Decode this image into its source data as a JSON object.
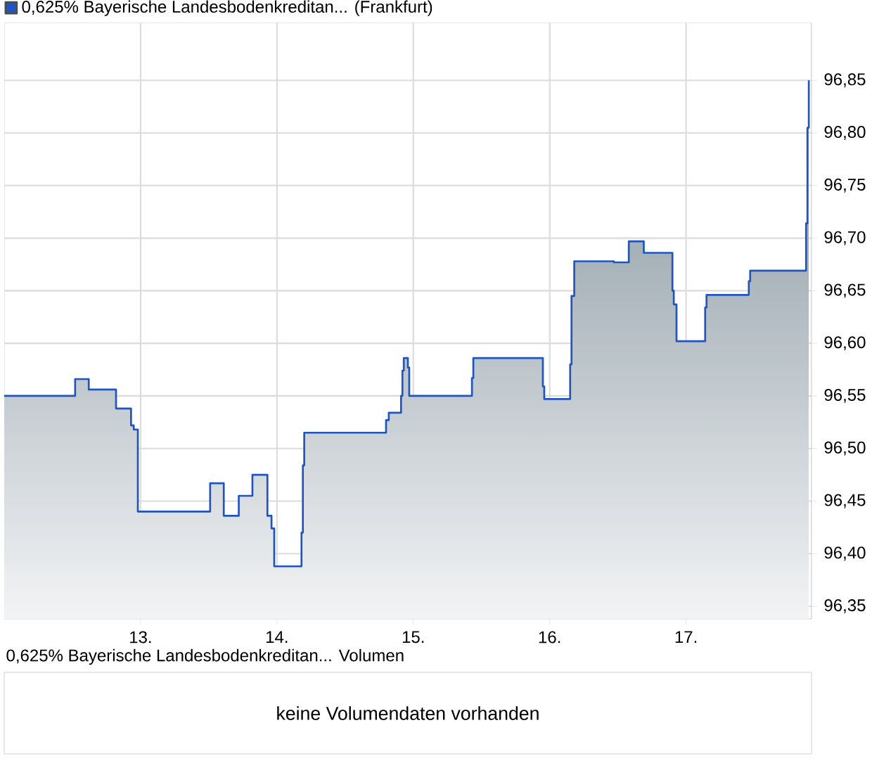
{
  "chart_data": [
    {
      "type": "step",
      "legend": "top left",
      "grid": true,
      "marker": "none",
      "xlim": [
        12.0,
        17.92
      ],
      "ylim": [
        96.338,
        96.905
      ],
      "xticks": [
        {
          "value": 13,
          "label": "13."
        },
        {
          "value": 14,
          "label": "14."
        },
        {
          "value": 15,
          "label": "15."
        },
        {
          "value": 16,
          "label": "16."
        },
        {
          "value": 17,
          "label": "17."
        }
      ],
      "yticks": [
        {
          "value": 96.35,
          "label": "96,35"
        },
        {
          "value": 96.4,
          "label": "96,40"
        },
        {
          "value": 96.45,
          "label": "96,45"
        },
        {
          "value": 96.5,
          "label": "96,50"
        },
        {
          "value": 96.55,
          "label": "96,55"
        },
        {
          "value": 96.6,
          "label": "96,60"
        },
        {
          "value": 96.65,
          "label": "96,65"
        },
        {
          "value": 96.7,
          "label": "96,70"
        },
        {
          "value": 96.75,
          "label": "96,75"
        },
        {
          "value": 96.8,
          "label": "96,80"
        },
        {
          "value": 96.85,
          "label": "96,85"
        }
      ],
      "series": [
        {
          "name": "0,625% Bayerische Landesbodenkreditan... (Frankfurt)",
          "color": "#1f55c0",
          "x": [
            12.0,
            12.52,
            12.62,
            12.82,
            12.93,
            12.95,
            12.98,
            13.51,
            13.61,
            13.72,
            13.82,
            13.93,
            13.96,
            13.98,
            14.18,
            14.19,
            14.2,
            14.8,
            14.82,
            14.91,
            14.92,
            14.93,
            14.96,
            14.97,
            15.43,
            15.44,
            15.95,
            15.96,
            16.15,
            16.16,
            16.18,
            16.47,
            16.58,
            16.69,
            16.9,
            16.91,
            16.93,
            17.14,
            17.15,
            17.46,
            17.47,
            17.88,
            17.89,
            17.9
          ],
          "values": [
            96.55,
            96.566,
            96.556,
            96.538,
            96.522,
            96.518,
            96.44,
            96.467,
            96.436,
            96.455,
            96.475,
            96.436,
            96.424,
            96.388,
            96.42,
            96.484,
            96.515,
            96.527,
            96.534,
            96.55,
            96.574,
            96.586,
            96.577,
            96.55,
            96.567,
            96.586,
            96.559,
            96.547,
            96.58,
            96.645,
            96.678,
            96.677,
            96.697,
            96.686,
            96.65,
            96.637,
            96.602,
            96.634,
            96.646,
            96.659,
            96.669,
            96.714,
            96.805,
            96.85
          ]
        }
      ]
    },
    {
      "type": "other",
      "title": "0,625% Bayerische Landesbodenkreditan... Volumen",
      "annotations": [
        "keine Volumendaten vorhanden"
      ]
    }
  ]
}
